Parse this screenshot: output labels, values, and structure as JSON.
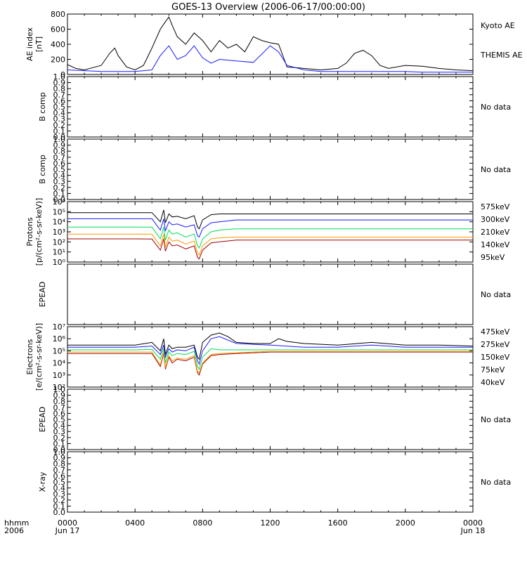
{
  "title": "GOES-13 Overview (2006-06-17/00:00:00)",
  "colors": {
    "black": "#000000",
    "blue": "#1a1aff",
    "green": "#00dd55",
    "orange": "#ff9900",
    "red": "#a00000"
  },
  "xaxis": {
    "row_label_1": "hhmm",
    "row_label_2": "2006",
    "range_hours": [
      0,
      24
    ],
    "ticks": [
      {
        "h": 0,
        "label": "0000",
        "sub": "Jun 17"
      },
      {
        "h": 4,
        "label": "0400",
        "sub": ""
      },
      {
        "h": 8,
        "label": "0800",
        "sub": ""
      },
      {
        "h": 12,
        "label": "1200",
        "sub": ""
      },
      {
        "h": 16,
        "label": "1600",
        "sub": ""
      },
      {
        "h": 20,
        "label": "2000",
        "sub": ""
      },
      {
        "h": 24,
        "label": "0000",
        "sub": "Jun 18"
      }
    ]
  },
  "chart_data": [
    {
      "type": "line",
      "ylabel": [
        "AE index",
        "[nT]"
      ],
      "ylim": [
        0,
        800
      ],
      "yticks": [
        "0",
        "200",
        "400",
        "600",
        "800"
      ],
      "series": [
        {
          "name": "Kyoto AE",
          "color": "black",
          "x": [
            0,
            0.5,
            1,
            1.5,
            2,
            2.5,
            2.8,
            3,
            3.5,
            4,
            4.5,
            5,
            5.5,
            5.8,
            6,
            6.2,
            6.5,
            7,
            7.5,
            8,
            8.5,
            9,
            9.5,
            10,
            10.5,
            11,
            11.5,
            12,
            12.5,
            13,
            13.5,
            14,
            15,
            16,
            16.5,
            17,
            17.5,
            18,
            18.5,
            19,
            20,
            21,
            22,
            23,
            24
          ],
          "y": [
            130,
            80,
            60,
            90,
            120,
            280,
            350,
            250,
            100,
            60,
            120,
            350,
            600,
            700,
            760,
            650,
            500,
            400,
            550,
            450,
            300,
            450,
            350,
            400,
            300,
            500,
            450,
            420,
            400,
            100,
            90,
            80,
            60,
            80,
            150,
            280,
            320,
            250,
            120,
            80,
            120,
            110,
            80,
            60,
            50
          ]
        },
        {
          "name": "THEMIS AE",
          "color": "blue",
          "x": [
            0,
            1,
            2,
            3,
            4,
            5,
            5.5,
            6,
            6.5,
            7,
            7.5,
            8,
            8.5,
            9,
            10,
            11,
            12,
            12.5,
            13,
            14,
            15,
            16,
            17,
            18,
            19,
            20,
            21,
            22,
            23,
            24
          ],
          "y": [
            60,
            50,
            40,
            40,
            40,
            60,
            250,
            380,
            200,
            250,
            380,
            220,
            150,
            200,
            180,
            160,
            380,
            300,
            120,
            60,
            40,
            40,
            40,
            40,
            40,
            40,
            30,
            30,
            30,
            30
          ]
        }
      ],
      "note": ""
    },
    {
      "type": "line",
      "ylabel": [
        "B comp"
      ],
      "ylim": [
        0,
        1
      ],
      "yticks": [
        "0.0",
        "0.1",
        "0.2",
        "0.3",
        "0.4",
        "0.5",
        "0.6",
        "0.7",
        "0.8",
        "0.9",
        "1.0"
      ],
      "series": [],
      "note": "No data"
    },
    {
      "type": "line",
      "ylabel": [
        "B comp"
      ],
      "ylim": [
        0,
        1
      ],
      "yticks": [
        "0.0",
        "0.1",
        "0.2",
        "0.3",
        "0.4",
        "0.5",
        "0.6",
        "0.7",
        "0.8",
        "0.9",
        "1.0"
      ],
      "series": [],
      "note": "No data"
    },
    {
      "type": "line",
      "scale": "log",
      "ylabel": [
        "Protons",
        "[p/(cm²-s-sr-keV)]"
      ],
      "ylim": [
        1,
        1000000
      ],
      "yticks": [
        "10⁰",
        "10¹",
        "10²",
        "10³",
        "10⁴",
        "10⁵",
        "10⁶"
      ],
      "series": [
        {
          "name": "575keV",
          "color": "red",
          "x": [
            0,
            1,
            2,
            3,
            4,
            5,
            5.5,
            5.7,
            5.8,
            6,
            6.2,
            6.5,
            7,
            7.5,
            7.7,
            7.8,
            8,
            8.5,
            9,
            10,
            12,
            14,
            16,
            18,
            20,
            22,
            24
          ],
          "y": [
            200,
            200,
            200,
            200,
            200,
            190,
            15,
            200,
            12,
            100,
            40,
            50,
            20,
            40,
            3,
            2,
            15,
            80,
            100,
            150,
            150,
            150,
            150,
            150,
            150,
            150,
            150
          ]
        },
        {
          "name": "300keV",
          "color": "orange",
          "x": [
            0,
            1,
            2,
            3,
            4,
            5,
            5.5,
            5.7,
            5.8,
            6,
            6.2,
            6.5,
            7,
            7.5,
            7.7,
            7.8,
            8,
            8.5,
            9,
            10,
            12,
            14,
            16,
            18,
            20,
            22,
            24
          ],
          "y": [
            600,
            600,
            600,
            600,
            600,
            580,
            40,
            600,
            30,
            300,
            120,
            150,
            60,
            120,
            8,
            5,
            40,
            200,
            250,
            300,
            300,
            300,
            300,
            300,
            300,
            300,
            300
          ]
        },
        {
          "name": "210keV",
          "color": "green",
          "x": [
            0,
            1,
            2,
            3,
            4,
            5,
            5.5,
            5.7,
            5.8,
            6,
            6.2,
            6.5,
            7,
            7.5,
            7.7,
            7.8,
            8,
            8.5,
            9,
            10,
            12,
            14,
            16,
            18,
            20,
            22,
            24
          ],
          "y": [
            3000,
            3000,
            3000,
            3000,
            3000,
            2900,
            200,
            3000,
            150,
            1500,
            600,
            800,
            300,
            600,
            40,
            25,
            200,
            1000,
            1500,
            2000,
            2000,
            2000,
            2000,
            2000,
            2000,
            2000,
            2000
          ]
        },
        {
          "name": "140keV",
          "color": "blue",
          "x": [
            0,
            1,
            2,
            3,
            4,
            5,
            5.5,
            5.7,
            5.8,
            6,
            6.2,
            6.5,
            7,
            7.5,
            7.7,
            7.8,
            8,
            8.5,
            9,
            10,
            12,
            14,
            16,
            18,
            20,
            22,
            24
          ],
          "y": [
            20000,
            20000,
            20000,
            20000,
            20000,
            20000,
            1500,
            20000,
            1200,
            10000,
            5000,
            6000,
            3000,
            5000,
            400,
            300,
            2000,
            8000,
            10000,
            15000,
            15000,
            15000,
            15000,
            15000,
            15000,
            15000,
            15000
          ]
        },
        {
          "name": "95keV",
          "color": "black",
          "x": [
            0,
            1,
            2,
            3,
            4,
            5,
            5.5,
            5.7,
            5.8,
            6,
            6.2,
            6.5,
            7,
            7.5,
            7.7,
            7.8,
            8,
            8.5,
            9,
            10,
            12,
            14,
            16,
            18,
            20,
            22,
            24
          ],
          "y": [
            80000,
            80000,
            80000,
            80000,
            80000,
            80000,
            10000,
            150000,
            8000,
            60000,
            30000,
            35000,
            20000,
            40000,
            3000,
            2000,
            15000,
            50000,
            60000,
            60000,
            60000,
            60000,
            60000,
            60000,
            60000,
            60000,
            60000
          ]
        }
      ],
      "note": ""
    },
    {
      "type": "line",
      "ylabel": [
        "EPEAD"
      ],
      "ylim": [
        0,
        1
      ],
      "yticks": [],
      "series": [],
      "note": "No data"
    },
    {
      "type": "line",
      "scale": "log",
      "ylabel": [
        "Electrons",
        "[e/(cm²-s-sr-keV)]"
      ],
      "ylim": [
        100,
        10000000
      ],
      "yticks": [
        "10²",
        "10³",
        "10⁴",
        "10⁵",
        "10⁶",
        "10⁷"
      ],
      "series": [
        {
          "name": "475keV",
          "color": "red",
          "x": [
            0,
            1,
            2,
            3,
            4,
            5,
            5.5,
            5.7,
            5.8,
            6,
            6.2,
            6.5,
            7,
            7.5,
            7.7,
            7.8,
            8,
            8.5,
            9,
            10,
            12,
            14,
            16,
            18,
            20,
            22,
            24
          ],
          "y": [
            60000,
            60000,
            60000,
            60000,
            60000,
            60000,
            5000,
            60000,
            3000,
            30000,
            10000,
            20000,
            15000,
            30000,
            1500,
            1000,
            8000,
            40000,
            50000,
            60000,
            80000,
            80000,
            80000,
            80000,
            80000,
            80000,
            80000
          ]
        },
        {
          "name": "275keV",
          "color": "orange",
          "x": [
            0,
            1,
            2,
            3,
            4,
            5,
            5.5,
            5.7,
            5.8,
            6,
            6.2,
            6.5,
            7,
            7.5,
            7.7,
            7.8,
            8,
            8.5,
            9,
            10,
            12,
            14,
            16,
            18,
            20,
            22,
            24
          ],
          "y": [
            80000,
            80000,
            80000,
            80000,
            80000,
            80000,
            7000,
            80000,
            4000,
            40000,
            15000,
            25000,
            20000,
            40000,
            2000,
            1500,
            10000,
            50000,
            60000,
            70000,
            90000,
            90000,
            90000,
            90000,
            90000,
            90000,
            90000
          ]
        },
        {
          "name": "150keV",
          "color": "green",
          "x": [
            0,
            1,
            2,
            3,
            4,
            5,
            5.5,
            5.7,
            5.8,
            6,
            6.2,
            6.5,
            7,
            7.5,
            7.7,
            7.8,
            8,
            8.5,
            9,
            10,
            12,
            14,
            16,
            18,
            20,
            22,
            24
          ],
          "y": [
            120000,
            120000,
            120000,
            120000,
            120000,
            130000,
            20000,
            150000,
            10000,
            80000,
            40000,
            60000,
            50000,
            90000,
            5000,
            3000,
            30000,
            150000,
            120000,
            120000,
            120000,
            120000,
            120000,
            120000,
            120000,
            120000,
            120000
          ]
        },
        {
          "name": "75keV",
          "color": "blue",
          "x": [
            0,
            1,
            2,
            3,
            4,
            5,
            5.5,
            5.7,
            5.8,
            6,
            6.2,
            6.5,
            7,
            7.5,
            7.7,
            7.8,
            8,
            8.5,
            9,
            10,
            12,
            14,
            16,
            18,
            20,
            22,
            24
          ],
          "y": [
            200000,
            200000,
            200000,
            200000,
            200000,
            250000,
            50000,
            300000,
            30000,
            150000,
            80000,
            120000,
            100000,
            200000,
            15000,
            8000,
            100000,
            1000000,
            1500000,
            400000,
            300000,
            200000,
            200000,
            300000,
            200000,
            200000,
            200000
          ]
        },
        {
          "name": "40keV",
          "color": "black",
          "x": [
            0,
            1,
            2,
            3,
            4,
            5,
            5.5,
            5.7,
            5.8,
            6,
            6.2,
            6.5,
            7,
            7.5,
            7.7,
            7.8,
            8,
            8.5,
            9,
            9.5,
            10,
            11,
            12,
            12.5,
            13,
            14,
            16,
            18,
            20,
            22,
            24
          ],
          "y": [
            300000,
            300000,
            300000,
            300000,
            300000,
            500000,
            100000,
            1000000,
            50000,
            300000,
            150000,
            200000,
            200000,
            300000,
            30000,
            20000,
            500000,
            2000000,
            3000000,
            1500000,
            500000,
            400000,
            400000,
            1000000,
            600000,
            400000,
            300000,
            500000,
            300000,
            300000,
            250000
          ]
        }
      ],
      "note": ""
    },
    {
      "type": "line",
      "ylabel": [
        "EPEAD"
      ],
      "ylim": [
        0,
        1
      ],
      "yticks": [
        "0.0",
        "0.1",
        "0.2",
        "0.3",
        "0.4",
        "0.5",
        "0.6",
        "0.7",
        "0.8",
        "0.9",
        "1.0"
      ],
      "series": [],
      "note": "No data"
    },
    {
      "type": "line",
      "ylabel": [
        "X-ray"
      ],
      "ylim": [
        0,
        1
      ],
      "yticks": [
        "0.0",
        "0.1",
        "0.2",
        "0.3",
        "0.4",
        "0.5",
        "0.6",
        "0.7",
        "0.8",
        "0.9",
        "1.0"
      ],
      "series": [],
      "note": "No data"
    }
  ]
}
